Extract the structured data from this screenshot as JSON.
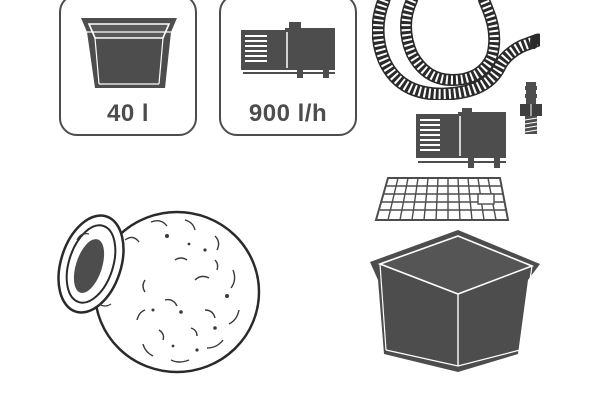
{
  "cards": {
    "basin": {
      "label": "40 l",
      "icon": "basin-icon"
    },
    "pump": {
      "label": "900 l/h",
      "icon": "pump-icon"
    }
  },
  "illustrations": [
    "decorative-jar",
    "hose",
    "hose-connector",
    "fountain-pump",
    "cover-grid",
    "water-basin"
  ],
  "colors": {
    "ink": "#4d4d4d",
    "dark": "#3e3e3e",
    "frame": "#2a2a2a"
  }
}
